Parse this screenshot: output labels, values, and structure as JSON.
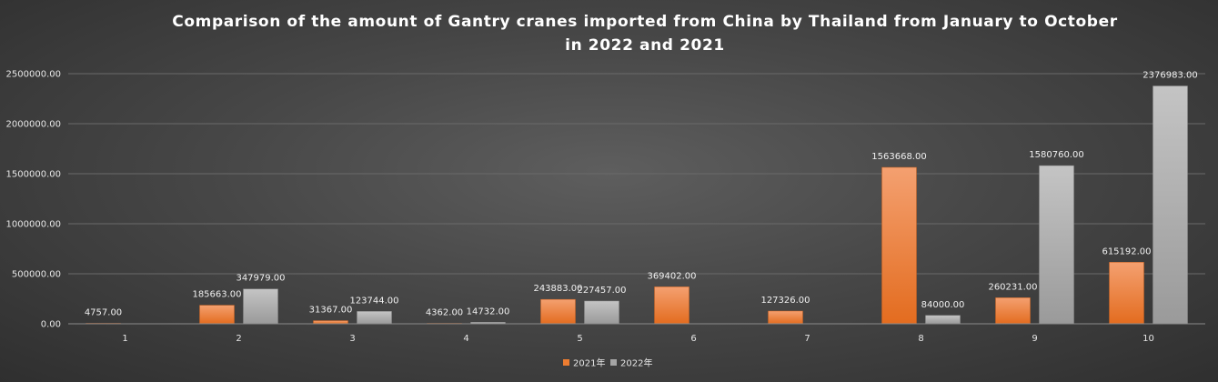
{
  "chart_data": {
    "type": "bar",
    "title_lines": [
      "Comparison of the amount of Gantry cranes imported from China by Thailand from January to October",
      "in 2022 and 2021"
    ],
    "categories": [
      "1",
      "2",
      "3",
      "4",
      "5",
      "6",
      "7",
      "8",
      "9",
      "10"
    ],
    "series": [
      {
        "name": "2021年",
        "color": "#ed7d31",
        "values": [
          4757,
          185663,
          31367,
          4362,
          243883,
          369402,
          127326,
          1563668,
          260231,
          615192
        ],
        "labels": [
          "4757.00",
          "185663.00",
          "31367.00",
          "4362.00",
          "243883.00",
          "369402.00",
          "127326.00",
          "1563668.00",
          "260231.00",
          "615192.00"
        ]
      },
      {
        "name": "2022年",
        "color": "#a5a5a5",
        "values": [
          null,
          347979,
          123744,
          14732,
          227457,
          null,
          null,
          84000,
          1580760,
          2376983
        ],
        "labels": [
          "",
          "347979.00",
          "123744.00",
          "14732.00",
          "227457.00",
          "",
          "",
          "84000.00",
          "1580760.00",
          "2376983.00"
        ]
      }
    ],
    "ylim": [
      0,
      2500000
    ],
    "yticks": [
      0,
      500000,
      1000000,
      1500000,
      2000000,
      2500000
    ],
    "ytick_labels": [
      "0.00",
      "500000.00",
      "1000000.00",
      "1500000.00",
      "2000000.00",
      "2500000.00"
    ],
    "grid": true,
    "legend_position": "bottom"
  }
}
